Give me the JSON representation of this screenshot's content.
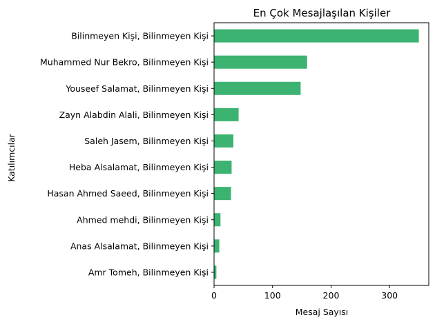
{
  "chart_data": {
    "type": "bar",
    "orientation": "horizontal",
    "title": "En Çok Mesajlaşılan Kişiler",
    "xlabel": "Mesaj Sayısı",
    "ylabel": "Katılımcılar",
    "xlim": [
      0,
      367
    ],
    "xticks": [
      0,
      100,
      200,
      300
    ],
    "bar_color": "#3cb371",
    "categories": [
      "Bilinmeyen Kişi, Bilinmeyen Kişi",
      "Muhammed Nur Bekro, Bilinmeyen Kişi",
      "Youseef Salamat, Bilinmeyen Kişi",
      "Zayn Alabdin Alali, Bilinmeyen Kişi",
      "Saleh Jasem, Bilinmeyen Kişi",
      "Heba Alsalamat, Bilinmeyen Kişi",
      "Hasan Ahmed Saeed, Bilinmeyen Kişi",
      "Ahmed mehdi, Bilinmeyen Kişi",
      "Anas Alsalamat, Bilinmeyen Kişi",
      "Amr Tomeh, Bilinmeyen Kişi"
    ],
    "values": [
      350,
      159,
      148,
      42,
      33,
      30,
      29,
      11,
      9,
      4
    ],
    "grid": false,
    "legend": false
  }
}
